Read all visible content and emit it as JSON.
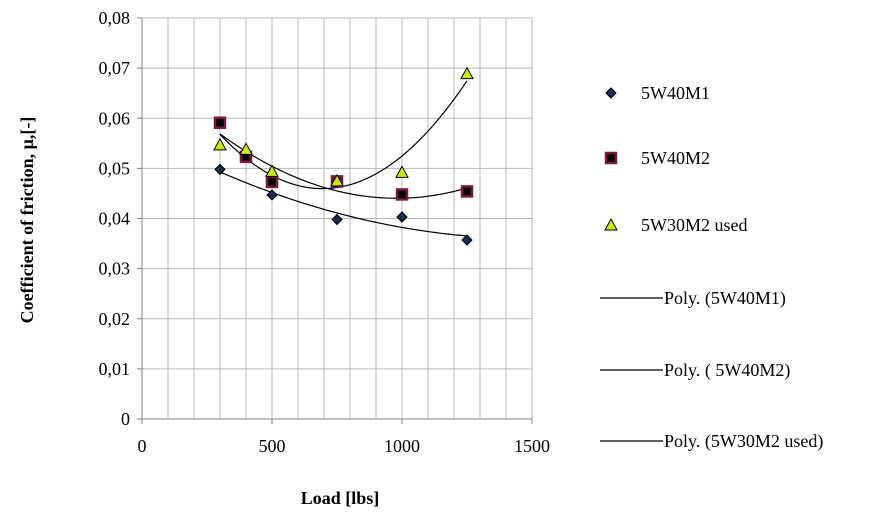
{
  "chart_data": {
    "type": "scatter",
    "title": "",
    "xlabel": "Load [lbs]",
    "ylabel": "Coefficient of friction, μ,[-]",
    "xlim": [
      0,
      1500
    ],
    "ylim": [
      0,
      0.08
    ],
    "x_ticks": [
      0,
      500,
      1000,
      1500
    ],
    "x_tick_labels": [
      "0",
      "500",
      "1000",
      "1500"
    ],
    "y_ticks": [
      0,
      0.01,
      0.02,
      0.03,
      0.04,
      0.05,
      0.06,
      0.07,
      0.08
    ],
    "y_tick_labels": [
      "0",
      "0,01",
      "0,02",
      "0,03",
      "0,04",
      "0,05",
      "0,06",
      "0,07",
      "0,08"
    ],
    "grid": true,
    "legend_position": "right",
    "series": [
      {
        "name": "5W40M1",
        "marker": "diamond",
        "color": "#1f2a55",
        "x": [
          300,
          500,
          750,
          1000,
          1250
        ],
        "y": [
          0.0498,
          0.0447,
          0.0398,
          0.0403,
          0.0357
        ]
      },
      {
        "name": " 5W40M2",
        "marker": "square",
        "color": "#7a1a3a",
        "x": [
          300,
          400,
          500,
          750,
          1000,
          1250
        ],
        "y": [
          0.0591,
          0.0523,
          0.0473,
          0.0474,
          0.0448,
          0.0454
        ]
      },
      {
        "name": "5W30M2 used",
        "marker": "triangle",
        "color": "#ccee00",
        "x": [
          300,
          400,
          500,
          750,
          1000,
          1250
        ],
        "y": [
          0.0547,
          0.0538,
          0.0494,
          0.0475,
          0.0492,
          0.0689
        ]
      }
    ],
    "trendlines": [
      {
        "name": "Poly. (5W40M1)",
        "series": 0,
        "color": "#000000"
      },
      {
        "name": "Poly. ( 5W40M2)",
        "series": 1,
        "color": "#000000"
      },
      {
        "name": "Poly. (5W30M2 used)",
        "series": 2,
        "color": "#000000"
      }
    ]
  }
}
